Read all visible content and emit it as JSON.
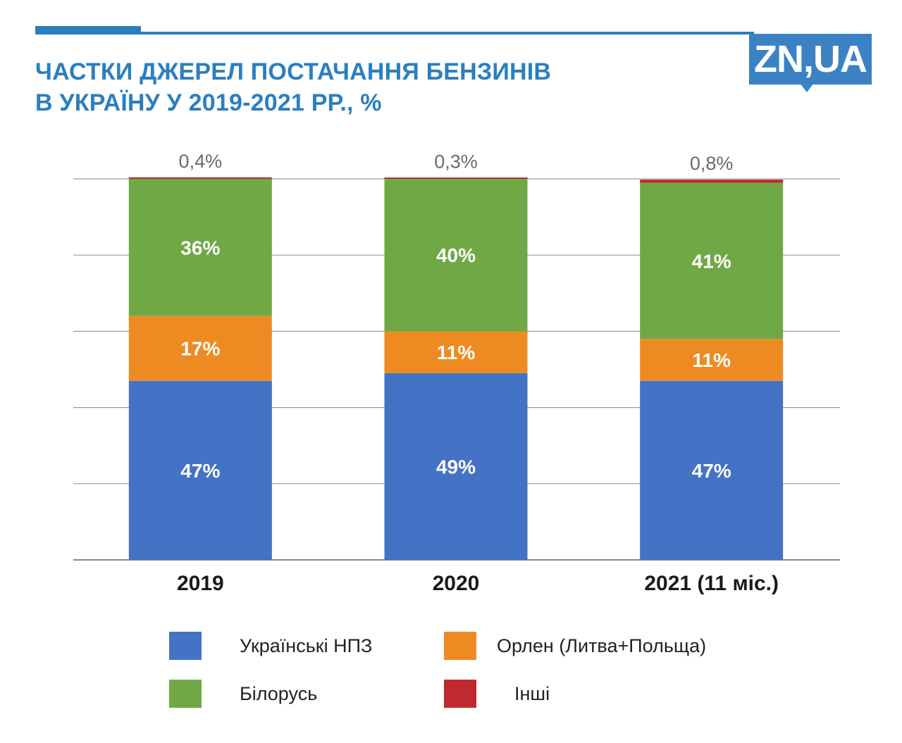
{
  "header": {
    "title_line1": "ЧАСТКИ ДЖЕРЕЛ ПОСТАЧАННЯ БЕНЗИНІВ",
    "title_line2": "В УКРАЇНУ У 2019-2021 РР., %",
    "logo_text": "ZN,UA",
    "accent_color": "#2a7fbf"
  },
  "chart_data": {
    "type": "bar",
    "stacked": true,
    "title": "ЧАСТКИ ДЖЕРЕЛ ПОСТАЧАННЯ БЕНЗИНІВ В УКРАЇНУ У 2019-2021 РР., %",
    "xlabel": "",
    "ylabel": "",
    "ylim": [
      0,
      100
    ],
    "yticks": [
      0,
      20,
      40,
      60,
      80,
      100
    ],
    "grid": true,
    "legend_position": "bottom",
    "categories": [
      "2019",
      "2020",
      "2021 (11 міс.)"
    ],
    "series": [
      {
        "name": "Українські НПЗ",
        "color": "#4472c4",
        "values": [
          47,
          49,
          47
        ],
        "labels": [
          "47%",
          "49%",
          "47%"
        ]
      },
      {
        "name": "Орлен (Литва+Польща)",
        "color": "#ed8b22",
        "values": [
          17,
          11,
          11
        ],
        "labels": [
          "17%",
          "11%",
          "11%"
        ]
      },
      {
        "name": "Білорусь",
        "color": "#70a846",
        "values": [
          36,
          40,
          41
        ],
        "labels": [
          "36%",
          "40%",
          "41%"
        ]
      },
      {
        "name": "Інші",
        "color": "#be2a2d",
        "values": [
          0.4,
          0.3,
          0.8
        ],
        "labels": [
          "0,4%",
          "0,3%",
          "0,8%"
        ]
      }
    ]
  },
  "legend": {
    "items": [
      {
        "label": "Українські НПЗ",
        "color": "#4472c4"
      },
      {
        "label": "Орлен (Литва+Польща)",
        "color": "#ed8b22"
      },
      {
        "label": "Білорусь",
        "color": "#70a846"
      },
      {
        "label": "Інші",
        "color": "#be2a2d"
      }
    ]
  }
}
